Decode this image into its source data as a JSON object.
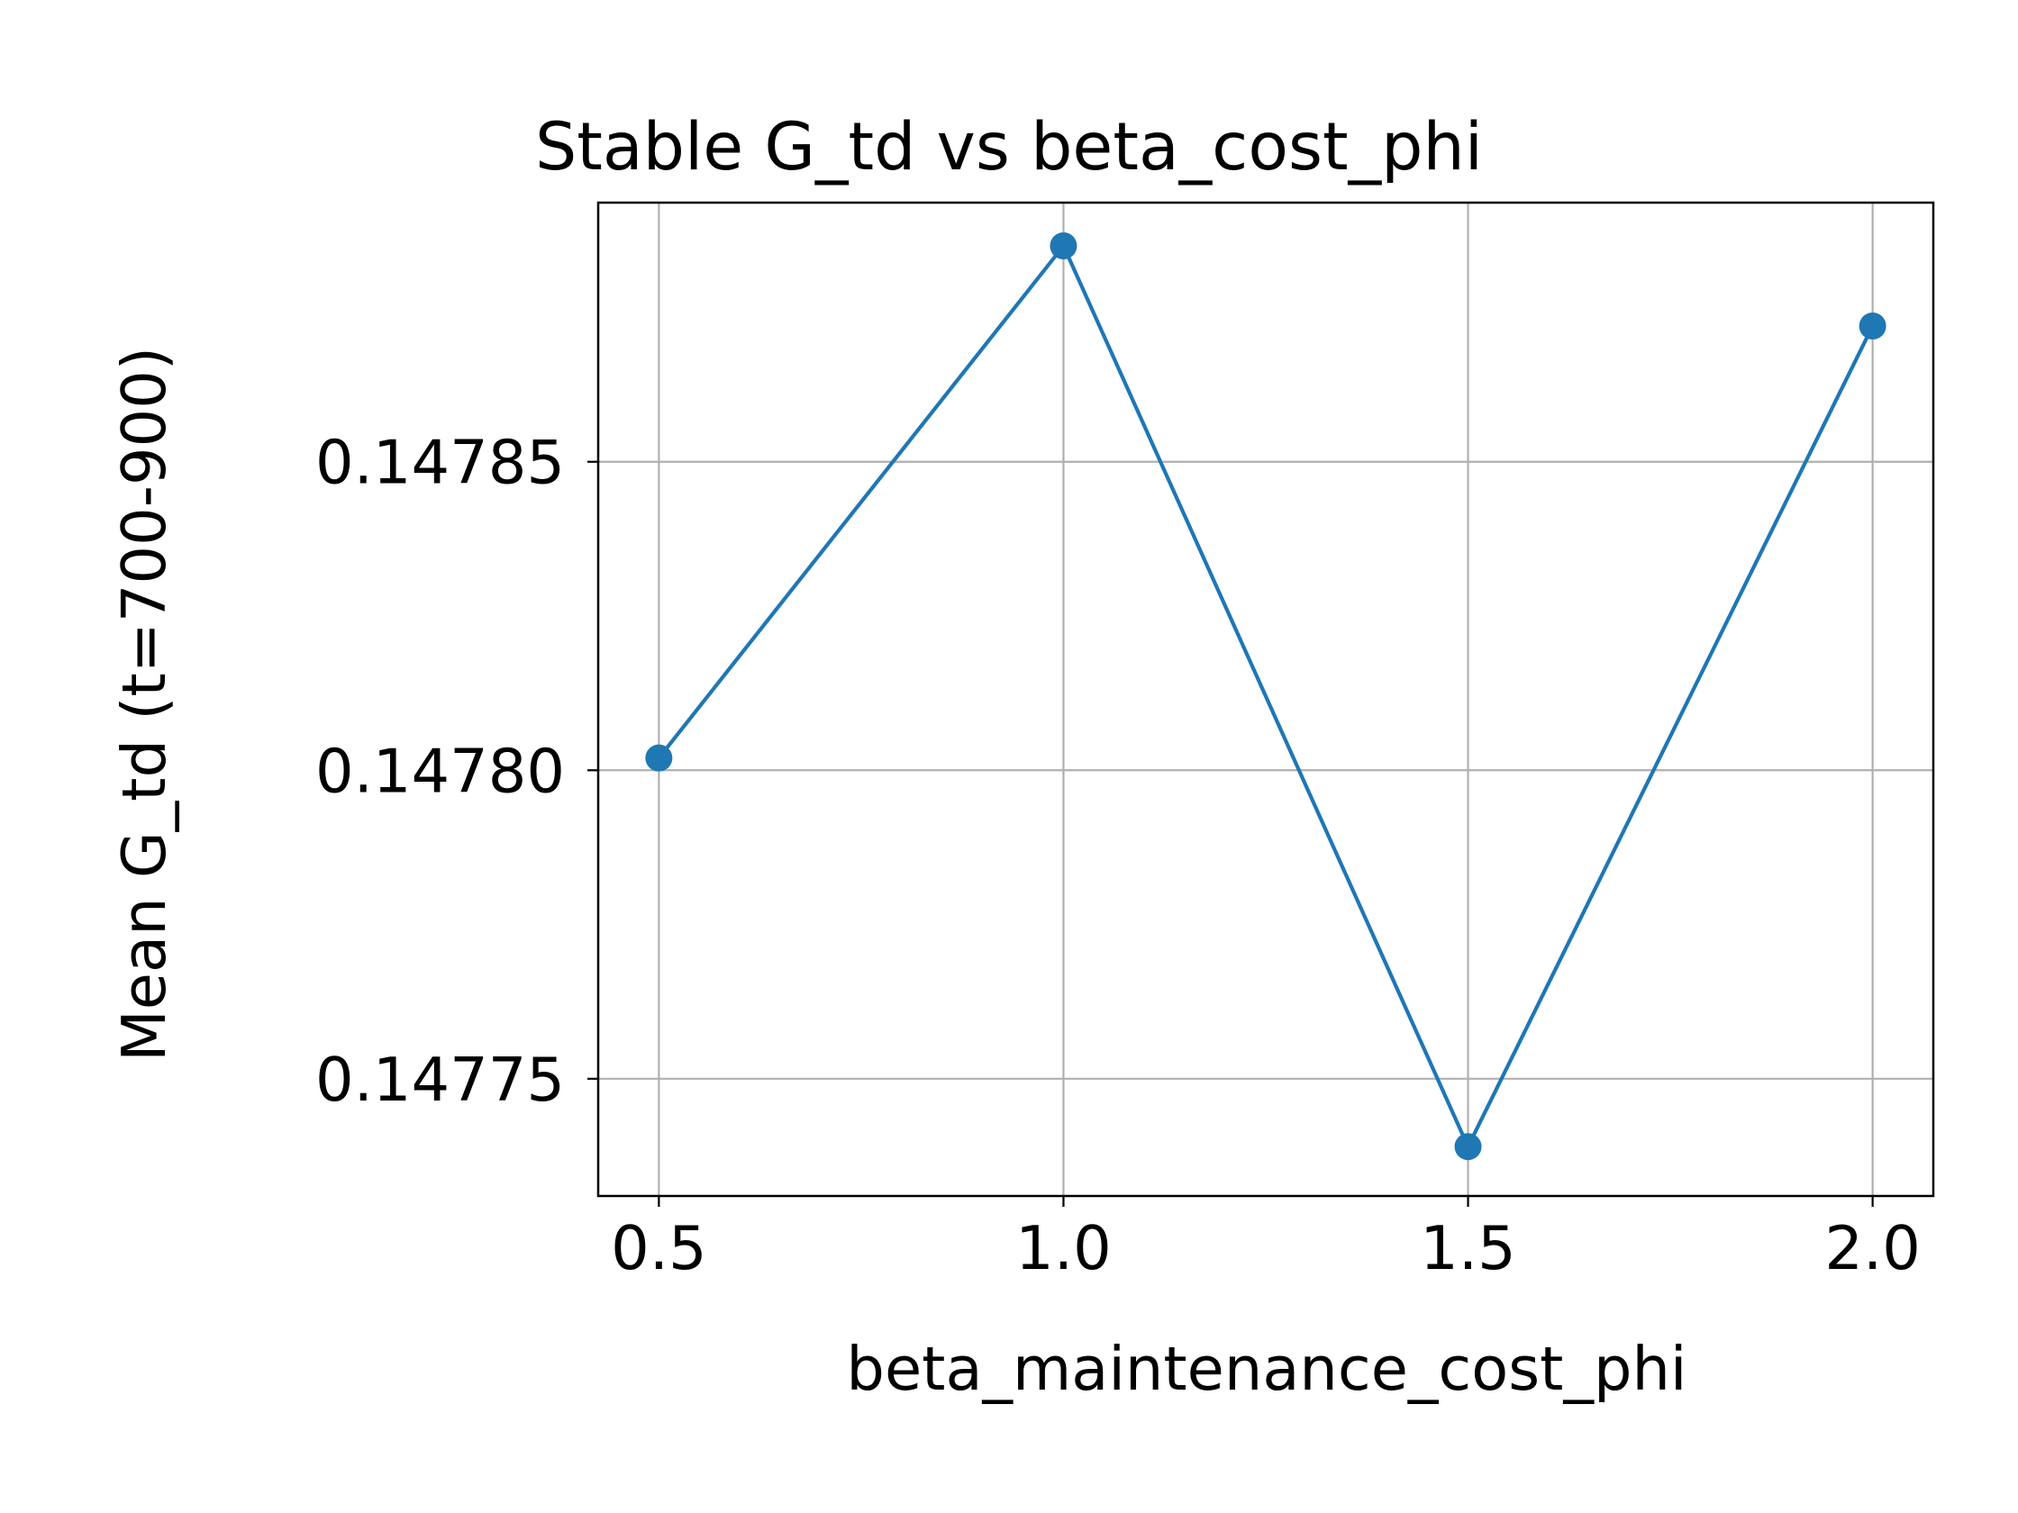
{
  "chart_data": {
    "type": "line",
    "title": "Stable G_td vs beta_cost_phi",
    "xlabel": "beta_maintenance_cost_phi",
    "ylabel": "Mean G_td (t=700-900)",
    "x": [
      0.5,
      1.0,
      1.5,
      2.0
    ],
    "series": [
      {
        "values": [
          0.147802,
          0.147885,
          0.147739,
          0.147872
        ],
        "color": "#1f77b4"
      }
    ],
    "xticks": [
      0.5,
      1.0,
      1.5,
      2.0
    ],
    "xtick_labels": [
      "0.5",
      "1.0",
      "1.5",
      "2.0"
    ],
    "yticks": [
      0.14775,
      0.1478,
      0.14785
    ],
    "ytick_labels": [
      "0.14775",
      "0.14780",
      "0.14785"
    ],
    "xlim": [
      0.425,
      2.075
    ],
    "ylim": [
      0.147731,
      0.147892
    ],
    "grid": true,
    "marker": "circle"
  }
}
